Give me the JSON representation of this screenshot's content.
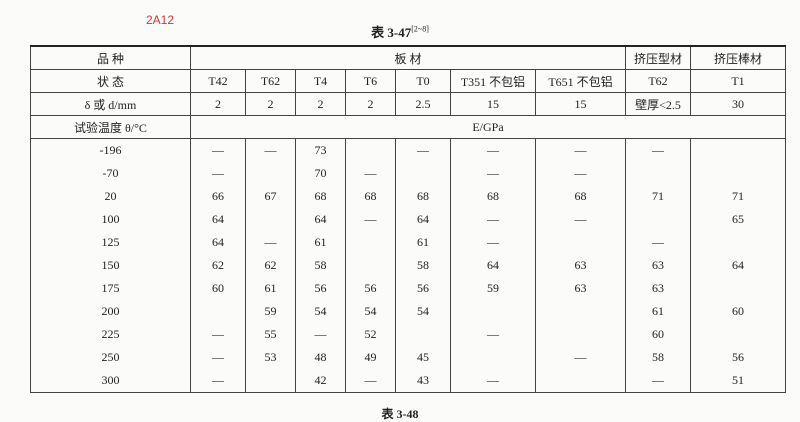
{
  "label": "2A12",
  "title": "表 3-47",
  "title_sup": "[2~8]",
  "table": {
    "header": [
      [
        "品 种",
        "板 材",
        "挤压型材",
        "挤压棒材"
      ],
      [
        "状 态",
        "T42",
        "T62",
        "T4",
        "T6",
        "T0",
        "T351 不包铝",
        "T651 不包铝",
        "T62",
        "T1"
      ],
      [
        "δ 或 d/mm",
        "2",
        "2",
        "2",
        "2",
        "2.5",
        "15",
        "15",
        "壁厚<2.5",
        "30"
      ],
      [
        "试验温度 θ/°C",
        "E/GPa"
      ]
    ],
    "rows": [
      [
        -196,
        "—",
        "—",
        73,
        null,
        "—",
        "—",
        "—",
        "—",
        null
      ],
      [
        -70,
        "—",
        null,
        70,
        "—",
        null,
        "—",
        "—",
        null,
        null
      ],
      [
        20,
        66,
        67,
        68,
        68,
        68,
        68,
        68,
        71,
        71
      ],
      [
        100,
        64,
        null,
        64,
        "—",
        64,
        "—",
        "—",
        null,
        65
      ],
      [
        125,
        64,
        "—",
        61,
        null,
        61,
        "—",
        null,
        "—",
        null
      ],
      [
        150,
        62,
        62,
        58,
        null,
        58,
        64,
        63,
        63,
        64
      ],
      [
        175,
        60,
        61,
        56,
        56,
        56,
        59,
        63,
        63,
        null
      ],
      [
        200,
        null,
        59,
        54,
        54,
        54,
        null,
        null,
        61,
        60
      ],
      [
        225,
        "—",
        55,
        "—",
        52,
        null,
        "—",
        null,
        60,
        null
      ],
      [
        250,
        "—",
        53,
        48,
        49,
        45,
        null,
        "—",
        58,
        56
      ],
      [
        300,
        "—",
        null,
        42,
        "—",
        43,
        "—",
        null,
        "—",
        51
      ]
    ]
  },
  "next_title": "表 3-48"
}
